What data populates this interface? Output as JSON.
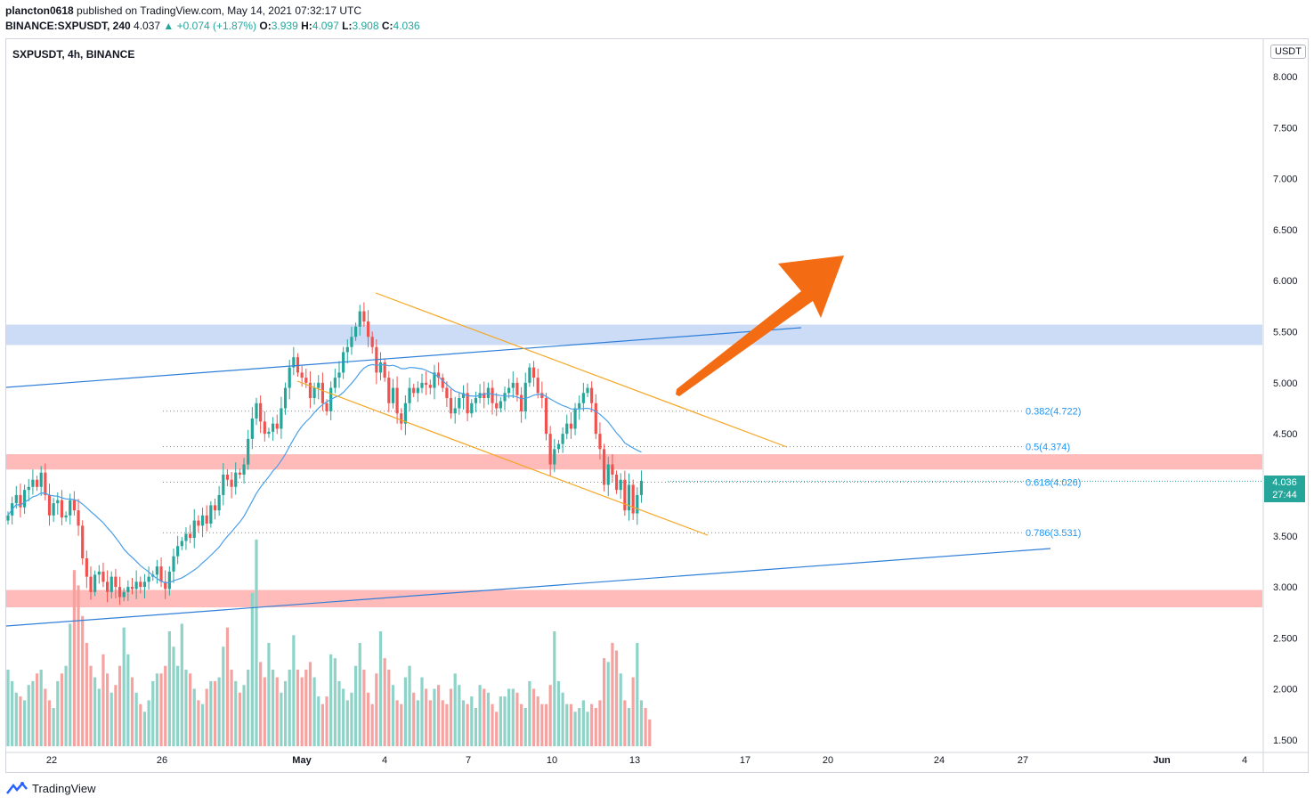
{
  "header": {
    "publisher": "plancton0618",
    "published_text": "published on TradingView.com, May 14, 2021 07:32:17 UTC",
    "symbol_line": "BINANCE:SXPUSDT, 240",
    "last": "4.037",
    "change": "▲ +0.074 (+1.87%)",
    "o_label": "O:",
    "o": "3.939",
    "h_label": "H:",
    "h": "4.097",
    "l_label": "L:",
    "l": "3.908",
    "c_label": "C:",
    "c": "4.036"
  },
  "chart_label": "SXPUSDT, 4h, BINANCE",
  "currency": "USDT",
  "price_tag": {
    "price": "4.036",
    "countdown": "27:44"
  },
  "footer": {
    "brand": "TradingView"
  },
  "colors": {
    "up": "#26a69a",
    "down": "#ef5350",
    "ma": "#4a9fe8",
    "channel": "#f5a623",
    "arrow": "#f36b12",
    "support_band": "#c6d8f5",
    "resist_band": "#ffb3b3"
  },
  "chart_data": {
    "type": "candlestick",
    "interval": "4h",
    "ylim": [
      1.45,
      8.25
    ],
    "y_ticks": [
      "8.000",
      "7.500",
      "7.000",
      "6.500",
      "6.000",
      "5.500",
      "5.000",
      "4.500",
      "4.000",
      "3.500",
      "3.000",
      "2.500",
      "2.000",
      "1.500"
    ],
    "x_ticks": [
      "22",
      "26",
      "May",
      "4",
      "7",
      "10",
      "13",
      "17",
      "20",
      "24",
      "27",
      "Jun",
      "4"
    ],
    "fib_levels": [
      {
        "label": "0.382(4.722)",
        "value": 4.722
      },
      {
        "label": "0.5(4.374)",
        "value": 4.374
      },
      {
        "label": "0.618(4.026)",
        "value": 4.026
      },
      {
        "label": "0.786(3.531)",
        "value": 3.531
      }
    ],
    "zones": [
      {
        "name": "resistance-blue",
        "from": 5.37,
        "to": 5.57
      },
      {
        "name": "resistance-red",
        "from": 4.15,
        "to": 4.3
      },
      {
        "name": "support-red",
        "from": 2.8,
        "to": 2.97
      }
    ],
    "closes": [
      3.7,
      3.82,
      3.9,
      3.78,
      3.95,
      3.98,
      4.05,
      3.98,
      4.12,
      3.9,
      3.7,
      3.82,
      3.85,
      3.68,
      3.7,
      3.85,
      3.75,
      3.6,
      3.28,
      3.1,
      2.95,
      3.12,
      3.15,
      3.05,
      2.95,
      3.1,
      3.0,
      2.9,
      2.95,
      3.0,
      2.98,
      3.05,
      3.0,
      3.05,
      3.1,
      3.12,
      3.2,
      3.05,
      2.98,
      3.15,
      3.3,
      3.4,
      3.45,
      3.52,
      3.48,
      3.65,
      3.6,
      3.7,
      3.62,
      3.8,
      3.75,
      3.9,
      4.1,
      4.05,
      3.98,
      4.12,
      4.1,
      4.2,
      4.45,
      4.65,
      4.8,
      4.62,
      4.5,
      4.52,
      4.6,
      4.55,
      4.75,
      4.95,
      5.15,
      5.25,
      5.1,
      5.05,
      5.0,
      4.85,
      4.95,
      5.0,
      4.8,
      4.72,
      4.95,
      5.05,
      5.1,
      5.3,
      5.35,
      5.45,
      5.55,
      5.7,
      5.6,
      5.45,
      5.35,
      5.1,
      5.2,
      5.05,
      4.8,
      4.95,
      4.7,
      4.6,
      4.8,
      4.95,
      4.9,
      4.95,
      5.0,
      4.98,
      4.95,
      5.1,
      5.05,
      4.95,
      4.85,
      4.7,
      4.75,
      4.85,
      4.9,
      4.7,
      4.8,
      4.85,
      4.9,
      4.85,
      4.95,
      4.8,
      4.75,
      4.82,
      4.9,
      4.95,
      5.0,
      4.88,
      4.72,
      5.0,
      5.15,
      5.05,
      4.9,
      4.85,
      4.5,
      4.2,
      4.35,
      4.4,
      4.5,
      4.6,
      4.55,
      4.75,
      4.8,
      4.9,
      4.95,
      4.8,
      4.5,
      4.35,
      4.0,
      4.2,
      4.1,
      3.95,
      4.05,
      3.75,
      4.0,
      3.72,
      3.9,
      4.04
    ],
    "volumes": [
      1.0,
      0.85,
      0.7,
      0.65,
      0.6,
      0.8,
      0.85,
      0.95,
      1.0,
      0.75,
      0.6,
      0.5,
      0.85,
      0.95,
      1.05,
      1.6,
      2.3,
      2.1,
      1.7,
      1.35,
      1.05,
      0.9,
      0.75,
      1.2,
      0.95,
      0.7,
      0.8,
      1.05,
      1.55,
      1.2,
      0.9,
      0.7,
      0.55,
      0.45,
      0.6,
      0.85,
      0.95,
      0.95,
      1.05,
      1.5,
      1.3,
      1.05,
      1.6,
      1.0,
      0.95,
      0.75,
      0.6,
      0.55,
      0.75,
      0.85,
      0.85,
      0.9,
      1.3,
      1.55,
      1.0,
      0.85,
      0.7,
      0.8,
      1.0,
      2.0,
      2.7,
      1.1,
      0.9,
      1.35,
      1.0,
      0.9,
      0.7,
      0.85,
      1.0,
      1.45,
      1.0,
      0.9,
      1.0,
      1.1,
      0.9,
      0.65,
      0.55,
      0.65,
      1.2,
      1.15,
      0.85,
      0.75,
      0.6,
      0.7,
      1.05,
      1.35,
      1.0,
      0.7,
      0.55,
      0.95,
      1.5,
      1.15,
      1.0,
      0.8,
      0.6,
      0.55,
      0.9,
      1.05,
      0.7,
      0.6,
      0.9,
      0.75,
      0.6,
      0.75,
      0.8,
      0.6,
      0.55,
      0.75,
      0.95,
      0.8,
      0.6,
      0.55,
      0.65,
      0.5,
      0.8,
      0.75,
      0.7,
      0.55,
      0.45,
      0.65,
      0.65,
      0.75,
      0.75,
      0.7,
      0.55,
      0.5,
      0.85,
      0.75,
      0.65,
      0.55,
      0.55,
      0.8,
      1.5,
      0.85,
      0.7,
      0.55,
      0.55,
      0.45,
      0.5,
      0.6,
      0.45,
      0.55,
      0.5,
      0.6,
      1.15,
      1.1,
      1.35,
      1.25,
      0.95,
      0.6,
      0.5,
      0.9,
      1.35,
      0.6,
      0.5,
      0.35
    ]
  }
}
